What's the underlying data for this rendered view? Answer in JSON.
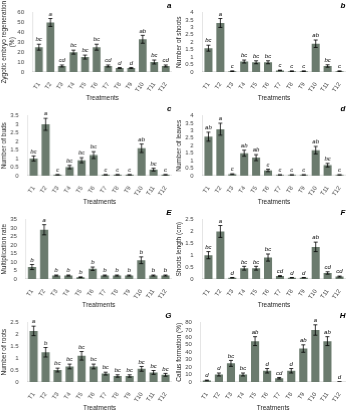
{
  "chart_data": [
    {
      "type": "bar",
      "title": "a",
      "ylabel": "Zygotic embryo regeneration\n(%)",
      "xlabel": "Treatments",
      "categories": [
        "T1",
        "T2",
        "T3",
        "T4",
        "T5",
        "T6",
        "T7",
        "T8",
        "T9",
        "T10",
        "T11",
        "T12"
      ],
      "values": [
        25,
        50,
        6,
        20,
        15,
        25,
        6,
        4,
        4,
        33,
        10,
        6
      ],
      "errors": [
        3,
        4,
        1,
        2,
        2,
        3,
        1,
        0.5,
        0.5,
        4,
        2,
        1
      ],
      "annotations": [
        "bc",
        "a",
        "cd",
        "bc",
        "bc",
        "bc",
        "cd",
        "d",
        "d",
        "ab",
        "bc",
        "cd"
      ],
      "ylim": [
        0,
        60
      ],
      "yticks": [
        0,
        10,
        20,
        30,
        40,
        50,
        60
      ],
      "color": "#6b7b6e",
      "grid": false
    },
    {
      "type": "bar",
      "title": "b",
      "ylabel": "Number of shoots",
      "xlabel": "Treatments",
      "categories": [
        "T1",
        "T2",
        "T3",
        "T4",
        "T5",
        "T6",
        "T7",
        "T8",
        "T9",
        "T10",
        "T11",
        "T12"
      ],
      "values": [
        1.6,
        3.3,
        0.05,
        0.7,
        0.65,
        0.65,
        0.1,
        0.05,
        0.05,
        1.9,
        0.4,
        0.05
      ],
      "errors": [
        0.2,
        0.3,
        0.02,
        0.1,
        0.1,
        0.1,
        0.02,
        0.02,
        0.02,
        0.25,
        0.08,
        0.02
      ],
      "annotations": [
        "bc",
        "a",
        "c",
        "bc",
        "bc",
        "bc",
        "c",
        "c",
        "c",
        "ab",
        "bc",
        "c"
      ],
      "ylim": [
        0,
        4
      ],
      "yticks": [
        0,
        0.5,
        1,
        1.5,
        2,
        2.5,
        3,
        3.5,
        4
      ],
      "color": "#6b7b6e",
      "grid": false
    },
    {
      "type": "bar",
      "title": "c",
      "ylabel": "Number of buds",
      "xlabel": "Treatments",
      "categories": [
        "T1",
        "T2",
        "T3",
        "T4",
        "T5",
        "T6",
        "T7",
        "T8",
        "T9",
        "T10",
        "T11",
        "T12"
      ],
      "values": [
        1.0,
        3.0,
        0.05,
        0.5,
        0.9,
        1.2,
        0.05,
        0.05,
        0.05,
        1.6,
        0.35,
        0.05
      ],
      "errors": [
        0.15,
        0.35,
        0.01,
        0.1,
        0.15,
        0.2,
        0.01,
        0.01,
        0.01,
        0.25,
        0.08,
        0.01
      ],
      "annotations": [
        "bc",
        "a",
        "c",
        "bc",
        "bc",
        "bc",
        "c",
        "c",
        "c",
        "ab",
        "bc",
        "c"
      ],
      "ylim": [
        0,
        3.5
      ],
      "yticks": [
        0,
        0.5,
        1,
        1.5,
        2,
        2.5,
        3,
        3.5
      ],
      "color": "#6b7b6e",
      "grid": false
    },
    {
      "type": "bar",
      "title": "d",
      "ylabel": "Number of leaves",
      "xlabel": "Treatments",
      "categories": [
        "T1",
        "T2",
        "T3",
        "T4",
        "T5",
        "T6",
        "T7",
        "T8",
        "T9",
        "T10",
        "T11",
        "T12"
      ],
      "values": [
        2.6,
        3.1,
        0.1,
        1.5,
        1.2,
        0.35,
        0.05,
        0.05,
        0.05,
        1.7,
        0.7,
        0.05
      ],
      "errors": [
        0.3,
        0.4,
        0.02,
        0.2,
        0.2,
        0.08,
        0.01,
        0.01,
        0.01,
        0.25,
        0.12,
        0.01
      ],
      "annotations": [
        "ab",
        "a",
        "c",
        "ab",
        "ab",
        "c",
        "c",
        "c",
        "c",
        "ab",
        "bc",
        "c"
      ],
      "ylim": [
        0,
        4
      ],
      "yticks": [
        0,
        0.5,
        1,
        1.5,
        2,
        2.5,
        3,
        3.5,
        4
      ],
      "color": "#6b7b6e",
      "grid": false
    },
    {
      "type": "bar",
      "title": "E",
      "ylabel": "Multiplication rate",
      "xlabel": "Treatments",
      "categories": [
        "T1",
        "T2",
        "T3",
        "T4",
        "T5",
        "T6",
        "T7",
        "T8",
        "T9",
        "T10",
        "T11",
        "T12"
      ],
      "values": [
        7,
        29,
        2,
        2,
        1,
        6,
        2,
        2,
        2,
        11,
        2,
        2
      ],
      "errors": [
        1.5,
        3,
        0.3,
        0.3,
        0.2,
        1,
        0.3,
        0.3,
        0.3,
        2,
        0.3,
        0.3
      ],
      "annotations": [
        "b",
        "a",
        "b",
        "b",
        "b",
        "b",
        "b",
        "b",
        "b",
        "b",
        "b",
        "b"
      ],
      "ylim": [
        0,
        35
      ],
      "yticks": [
        0,
        5,
        10,
        15,
        20,
        25,
        30,
        35
      ],
      "color": "#6b7b6e",
      "grid": false
    },
    {
      "type": "bar",
      "title": "F",
      "ylabel": "Shoots length (cm)",
      "xlabel": "Treatments",
      "categories": [
        "T1",
        "T2",
        "T3",
        "T4",
        "T5",
        "T6",
        "T7",
        "T8",
        "T9",
        "T10",
        "T11",
        "T12"
      ],
      "values": [
        1.0,
        2.0,
        0.05,
        0.45,
        0.45,
        0.9,
        0.12,
        0.05,
        0.05,
        1.35,
        0.25,
        0.1
      ],
      "errors": [
        0.15,
        0.25,
        0.01,
        0.08,
        0.08,
        0.15,
        0.02,
        0.01,
        0.01,
        0.2,
        0.05,
        0.02
      ],
      "annotations": [
        "bc",
        "a",
        "d",
        "bc",
        "bc",
        "bc",
        "cd",
        "d",
        "d",
        "ab",
        "cd",
        "cd"
      ],
      "ylim": [
        0,
        2.5
      ],
      "yticks": [
        0,
        0.5,
        1,
        1.5,
        2,
        2.5
      ],
      "color": "#6b7b6e",
      "grid": false
    },
    {
      "type": "bar",
      "title": "G",
      "ylabel": "Number of roots",
      "xlabel": "Treatments",
      "categories": [
        "T1",
        "T2",
        "T3",
        "T4",
        "T5",
        "T6",
        "T7",
        "T8",
        "T9",
        "T10",
        "T11",
        "T12"
      ],
      "values": [
        2.15,
        1.25,
        0.5,
        0.65,
        1.1,
        0.65,
        0.35,
        0.25,
        0.25,
        0.55,
        0.4,
        0.3
      ],
      "errors": [
        0.2,
        0.2,
        0.08,
        0.1,
        0.18,
        0.1,
        0.06,
        0.05,
        0.05,
        0.1,
        0.08,
        0.06
      ],
      "annotations": [
        "a",
        "b",
        "bc",
        "bc",
        "bc",
        "bc",
        "bc",
        "bc",
        "bc",
        "bc",
        "bc",
        "bc"
      ],
      "ylim": [
        0,
        2.5
      ],
      "yticks": [
        0,
        0.5,
        1,
        1.5,
        2,
        2.5
      ],
      "color": "#6b7b6e",
      "grid": false
    },
    {
      "type": "bar",
      "title": "H",
      "ylabel": "Callus formation (%)",
      "xlabel": "Treatments",
      "categories": [
        "T1",
        "T2",
        "T3",
        "T4",
        "T5",
        "T6",
        "T7",
        "T8",
        "T9",
        "T10",
        "T11",
        "T12"
      ],
      "values": [
        2,
        10,
        25,
        10,
        55,
        15,
        5,
        15,
        45,
        70,
        55,
        0
      ],
      "errors": [
        0.5,
        2,
        4,
        2,
        6,
        3,
        1,
        3,
        5,
        7,
        6,
        0
      ],
      "annotations": [
        "d",
        "d",
        "bc",
        "bc",
        "ab",
        "d",
        "cd",
        "d",
        "ab",
        "a",
        "ab",
        "d"
      ],
      "ylim": [
        0,
        80
      ],
      "yticks": [
        0,
        10,
        20,
        30,
        40,
        50,
        60,
        70,
        80
      ],
      "color": "#6b7b6e",
      "grid": false
    }
  ]
}
